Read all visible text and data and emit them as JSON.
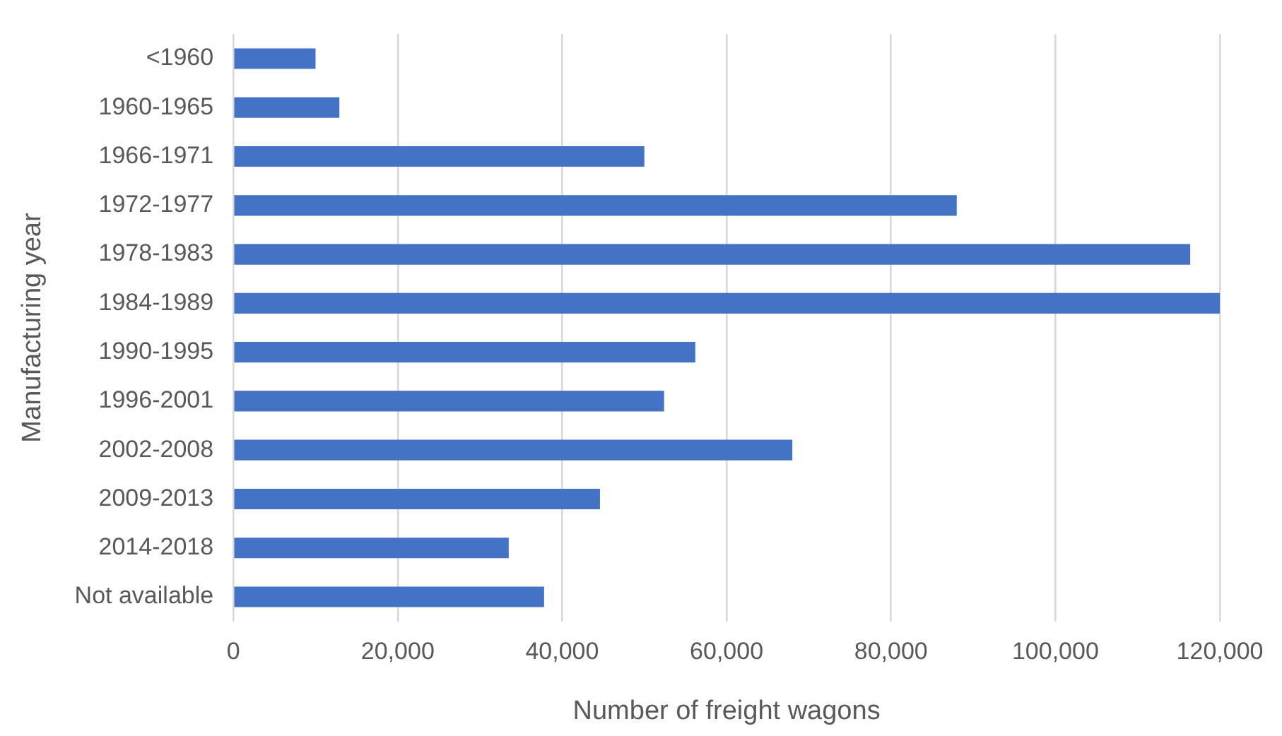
{
  "chart_data": {
    "type": "bar",
    "orientation": "horizontal",
    "xlabel": "Number of freight wagons",
    "ylabel": "Manufacturing year",
    "categories": [
      "<1960",
      "1960-1965",
      "1966-1971",
      "1972-1977",
      "1978-1983",
      "1984-1989",
      "1990-1995",
      "1996-2001",
      "2002-2008",
      "2009-2013",
      "2014-2018",
      "Not available"
    ],
    "values": [
      10000,
      12900,
      50000,
      88000,
      116400,
      120000,
      56200,
      52400,
      68000,
      44600,
      33500,
      37800
    ],
    "color": "#4472c4",
    "xlim": [
      0,
      120000
    ],
    "xticks": [
      0,
      {
        "value": 20000,
        "label": "20,000"
      },
      {
        "value": 40000,
        "label": "40,000"
      },
      {
        "value": 60000,
        "label": "60,000"
      },
      {
        "value": 80000,
        "label": "80,000"
      },
      {
        "value": 100000,
        "label": "100,000"
      },
      {
        "value": 120000,
        "label": "120,000"
      }
    ],
    "grid": "x",
    "legend": false
  }
}
